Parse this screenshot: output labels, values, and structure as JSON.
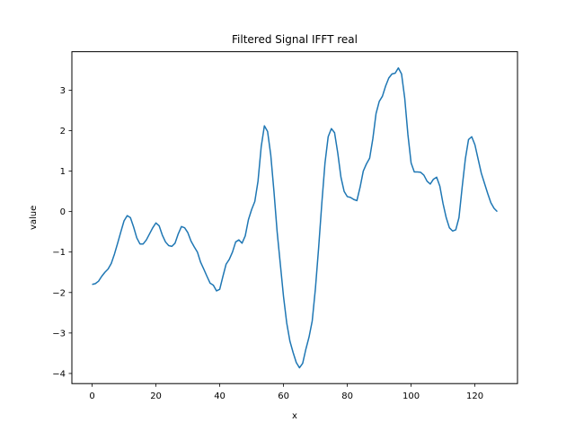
{
  "chart_data": {
    "type": "line",
    "title": "Filtered Signal IFFT real",
    "xlabel": "x",
    "ylabel": "value",
    "xlim": [
      -6.35,
      133.35
    ],
    "ylim": [
      -4.25,
      3.95
    ],
    "xticks": [
      0,
      20,
      40,
      60,
      80,
      100,
      120
    ],
    "yticks": [
      -4,
      -3,
      -2,
      -1,
      0,
      1,
      2,
      3
    ],
    "grid": false,
    "legend": "none",
    "series": [
      {
        "color": "#1f77b4",
        "x": [
          0,
          1,
          2,
          3,
          4,
          5,
          6,
          7,
          8,
          9,
          10,
          11,
          12,
          13,
          14,
          15,
          16,
          17,
          18,
          19,
          20,
          21,
          22,
          23,
          24,
          25,
          26,
          27,
          28,
          29,
          30,
          31,
          32,
          33,
          34,
          35,
          36,
          37,
          38,
          39,
          40,
          41,
          42,
          43,
          44,
          45,
          46,
          47,
          48,
          49,
          50,
          51,
          52,
          53,
          54,
          55,
          56,
          57,
          58,
          59,
          60,
          61,
          62,
          63,
          64,
          65,
          66,
          67,
          68,
          69,
          70,
          71,
          72,
          73,
          74,
          75,
          76,
          77,
          78,
          79,
          80,
          81,
          82,
          83,
          84,
          85,
          86,
          87,
          88,
          89,
          90,
          91,
          92,
          93,
          94,
          95,
          96,
          97,
          98,
          99,
          100,
          101,
          102,
          103,
          104,
          105,
          106,
          107,
          108,
          109,
          110,
          111,
          112,
          113,
          114,
          115,
          116,
          117,
          118,
          119,
          120,
          121,
          122,
          123,
          124,
          125,
          126,
          127
        ],
        "values": [
          -1.8,
          -1.78,
          -1.72,
          -1.6,
          -1.5,
          -1.42,
          -1.28,
          -1.05,
          -0.78,
          -0.5,
          -0.23,
          -0.1,
          -0.15,
          -0.38,
          -0.65,
          -0.8,
          -0.8,
          -0.7,
          -0.55,
          -0.4,
          -0.28,
          -0.35,
          -0.58,
          -0.75,
          -0.84,
          -0.86,
          -0.78,
          -0.55,
          -0.37,
          -0.4,
          -0.52,
          -0.73,
          -0.87,
          -1.0,
          -1.25,
          -1.42,
          -1.6,
          -1.77,
          -1.82,
          -1.96,
          -1.92,
          -1.6,
          -1.3,
          -1.18,
          -1.0,
          -0.75,
          -0.7,
          -0.78,
          -0.6,
          -0.2,
          0.05,
          0.25,
          0.75,
          1.6,
          2.12,
          1.98,
          1.4,
          0.5,
          -0.5,
          -1.3,
          -2.1,
          -2.75,
          -3.2,
          -3.48,
          -3.73,
          -3.86,
          -3.75,
          -3.4,
          -3.1,
          -2.7,
          -1.9,
          -0.9,
          0.2,
          1.2,
          1.85,
          2.05,
          1.95,
          1.45,
          0.85,
          0.5,
          0.37,
          0.35,
          0.3,
          0.27,
          0.6,
          1.0,
          1.18,
          1.32,
          1.8,
          2.42,
          2.72,
          2.85,
          3.1,
          3.3,
          3.4,
          3.42,
          3.55,
          3.4,
          2.8,
          1.9,
          1.2,
          0.98,
          0.98,
          0.97,
          0.9,
          0.75,
          0.68,
          0.8,
          0.85,
          0.63,
          0.2,
          -0.15,
          -0.4,
          -0.48,
          -0.45,
          -0.15,
          0.6,
          1.3,
          1.78,
          1.85,
          1.65,
          1.3,
          0.95,
          0.7,
          0.45,
          0.22,
          0.08,
          0.0
        ]
      }
    ]
  }
}
